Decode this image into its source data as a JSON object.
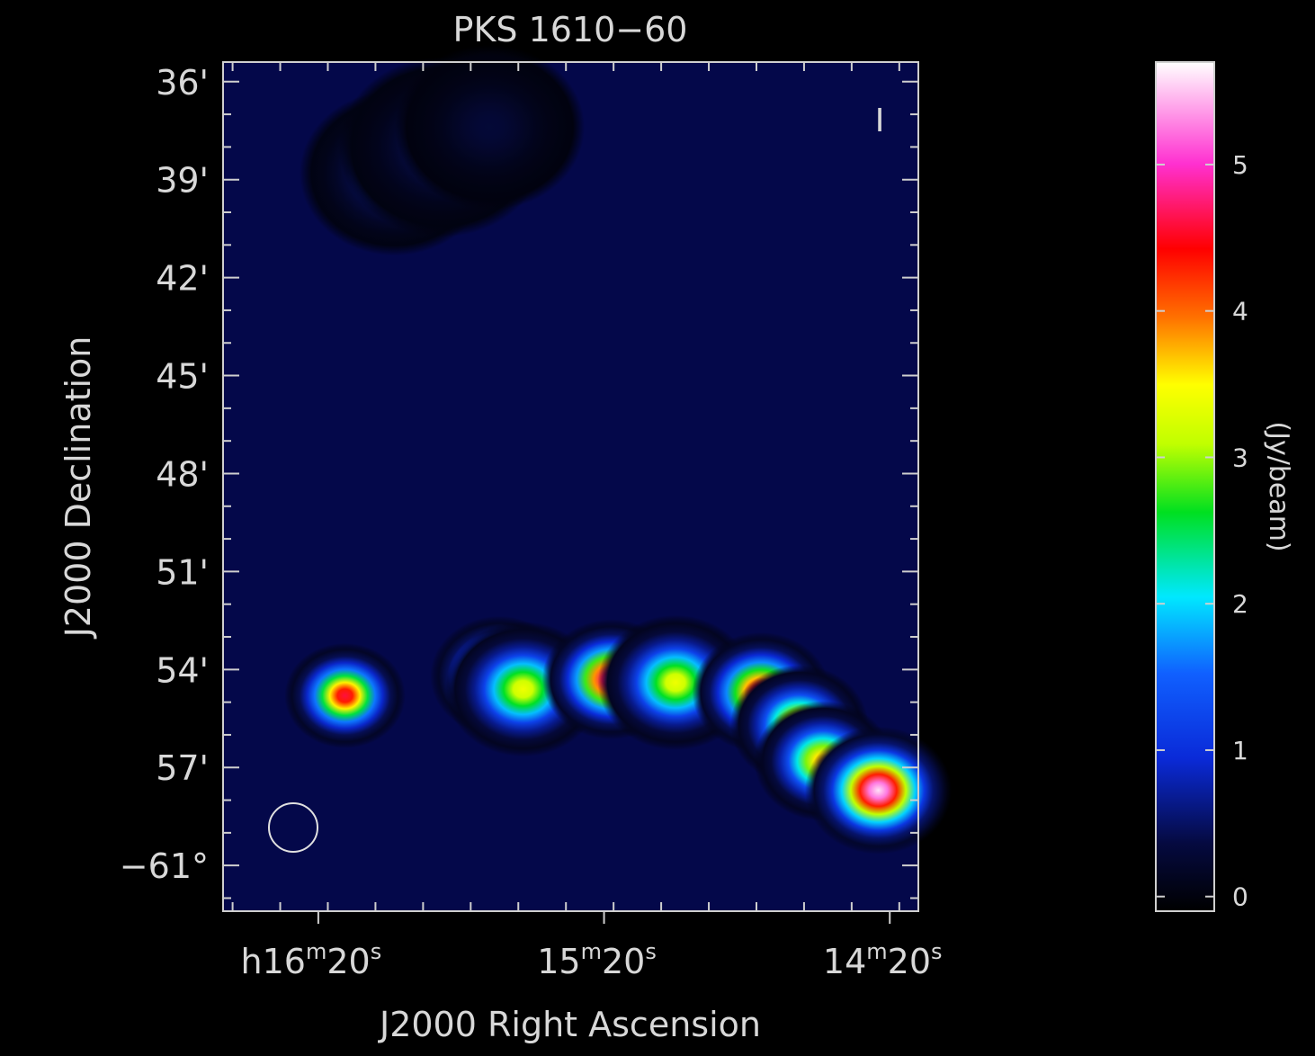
{
  "chart_data": {
    "type": "heatmap",
    "title": "PKS 1610−60",
    "xlabel": "J2000 Right Ascension",
    "ylabel": "J2000 Declination",
    "x_ticks": [
      {
        "value_s": 980,
        "main": "16",
        "parts": [
          [
            "h",
            ""
          ],
          [
            "16",
            ""
          ],
          [
            "m",
            "sup"
          ],
          [
            "20",
            ""
          ],
          [
            "s",
            "sup"
          ]
        ]
      },
      {
        "value_s": 920,
        "main": "15",
        "parts": [
          [
            "15",
            ""
          ],
          [
            "m",
            "sup"
          ],
          [
            "20",
            ""
          ],
          [
            "s",
            "sup"
          ]
        ]
      },
      {
        "value_s": 860,
        "main": "14",
        "parts": [
          [
            "14",
            ""
          ],
          [
            "m",
            "sup"
          ],
          [
            "20",
            ""
          ],
          [
            "s",
            "sup"
          ]
        ]
      }
    ],
    "y_ticks": [
      {
        "value_arcmin": -24,
        "label": "36'"
      },
      {
        "value_arcmin": -21,
        "label": "39'"
      },
      {
        "value_arcmin": -18,
        "label": "42'"
      },
      {
        "value_arcmin": -15,
        "label": "45'"
      },
      {
        "value_arcmin": -12,
        "label": "48'"
      },
      {
        "value_arcmin": -9,
        "label": "51'"
      },
      {
        "value_arcmin": -6,
        "label": "54'"
      },
      {
        "value_arcmin": -3,
        "label": "57'"
      },
      {
        "value_arcmin": 0,
        "label": "−61°"
      }
    ],
    "x_range_s": [
      1000,
      854
    ],
    "y_range_arcmin": [
      -24.6,
      1.4
    ],
    "colorbar": {
      "label": "(Jy/beam)",
      "range": [
        -0.1,
        5.7
      ],
      "ticks": [
        0,
        1,
        2,
        3,
        4,
        5
      ],
      "scale": "rainbow"
    },
    "sources": [
      {
        "ra_s": 974.4,
        "dec_arcmin": -5.2,
        "peak": 4.6,
        "sigma_arcmin": 0.7
      },
      {
        "ra_s": 942.0,
        "dec_arcmin": -5.8,
        "peak": 4.8,
        "sigma_arcmin": 0.8
      },
      {
        "ra_s": 937.0,
        "dec_arcmin": -5.4,
        "peak": 3.4,
        "sigma_arcmin": 0.9
      },
      {
        "ra_s": 918.5,
        "dec_arcmin": -5.7,
        "peak": 5.0,
        "sigma_arcmin": 0.8
      },
      {
        "ra_s": 905.0,
        "dec_arcmin": -5.6,
        "peak": 3.4,
        "sigma_arcmin": 0.9
      },
      {
        "ra_s": 887.0,
        "dec_arcmin": -5.3,
        "peak": 4.8,
        "sigma_arcmin": 0.8
      },
      {
        "ra_s": 879.0,
        "dec_arcmin": -4.3,
        "peak": 3.8,
        "sigma_arcmin": 0.8
      },
      {
        "ra_s": 874.0,
        "dec_arcmin": -3.2,
        "peak": 3.8,
        "sigma_arcmin": 0.8
      },
      {
        "ra_s": 862.4,
        "dec_arcmin": -2.3,
        "peak": 5.6,
        "sigma_arcmin": 0.85
      },
      {
        "ra_s": 964.0,
        "dec_arcmin": -21.2,
        "peak": 0.9,
        "sigma_arcmin": 1.1
      },
      {
        "ra_s": 954.0,
        "dec_arcmin": -22.0,
        "peak": 0.55,
        "sigma_arcmin": 1.2
      },
      {
        "ra_s": 944.0,
        "dec_arcmin": -22.6,
        "peak": 0.3,
        "sigma_arcmin": 1.1
      }
    ],
    "beam_label": "beam",
    "polarization_marker": "I",
    "colors": {
      "background": "#000000",
      "axes": "#cfcfcf",
      "text": "#d8d8d8"
    }
  }
}
